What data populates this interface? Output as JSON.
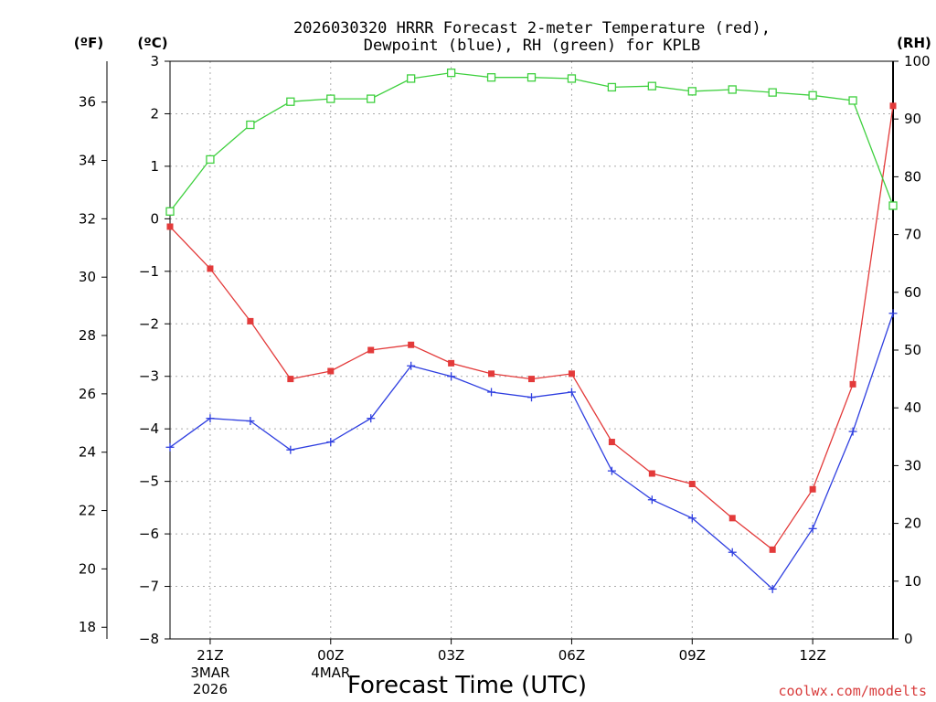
{
  "chart_data": {
    "type": "line",
    "title_line1": "2026030320 HRRR Forecast 2-meter Temperature (red),",
    "title_line2": "Dewpoint (blue), RH (green) for KPLB",
    "xlabel": "Forecast Time (UTC)",
    "credit": "coolwx.com/modelts",
    "unit_f": "(ºF)",
    "unit_c": "(ºC)",
    "unit_rh": "(RH)",
    "x_hours": [
      0,
      1,
      2,
      3,
      4,
      5,
      6,
      7,
      8,
      9,
      10,
      11,
      12,
      13,
      14,
      15,
      16,
      17,
      18
    ],
    "x_tick_hours": [
      1,
      4,
      7,
      10,
      13,
      16
    ],
    "x_tick_labels": [
      "21Z",
      "00Z",
      "03Z",
      "06Z",
      "09Z",
      "12Z"
    ],
    "date_labels": [
      {
        "hour": 1,
        "lines": [
          "3MAR",
          "2026"
        ]
      },
      {
        "hour": 4,
        "lines": [
          "4MAR"
        ]
      }
    ],
    "y_celsius": {
      "min": -8,
      "max": 3,
      "ticks": [
        3,
        2,
        1,
        0,
        -1,
        -2,
        -3,
        -4,
        -5,
        -6,
        -7,
        -8
      ]
    },
    "y_fahrenheit": {
      "ticks": [
        36,
        34,
        32,
        30,
        28,
        26,
        24,
        22,
        20,
        18
      ]
    },
    "y_rh": {
      "min": 0,
      "max": 100,
      "ticks": [
        100,
        90,
        80,
        70,
        60,
        50,
        40,
        30,
        20,
        10,
        0
      ]
    },
    "series": [
      {
        "name": "Temperature (red)",
        "unit": "C",
        "color": "#e33a3a",
        "marker": "filled-square",
        "values": [
          -0.15,
          -0.95,
          -1.95,
          -3.05,
          -2.9,
          -2.5,
          -2.4,
          -2.75,
          -2.95,
          -3.05,
          -2.95,
          -4.25,
          -4.85,
          -5.05,
          -5.7,
          -6.3,
          -5.15,
          -3.15,
          2.15
        ]
      },
      {
        "name": "Dewpoint (blue)",
        "unit": "C",
        "color": "#2f3fe0",
        "marker": "plus",
        "values": [
          -4.35,
          -3.8,
          -3.85,
          -4.4,
          -4.25,
          -3.8,
          -2.8,
          -3.0,
          -3.3,
          -3.4,
          -3.3,
          -4.8,
          -5.35,
          -5.7,
          -6.35,
          -7.05,
          -5.9,
          -4.05,
          -1.8
        ]
      },
      {
        "name": "RH (green)",
        "unit": "%",
        "color": "#3fd03f",
        "marker": "open-square",
        "values": [
          74,
          83,
          89,
          93,
          93.5,
          93.5,
          97,
          98,
          97.2,
          97.2,
          97,
          95.5,
          95.7,
          94.8,
          95.1,
          94.6,
          94.1,
          93.2,
          75
        ]
      }
    ]
  }
}
